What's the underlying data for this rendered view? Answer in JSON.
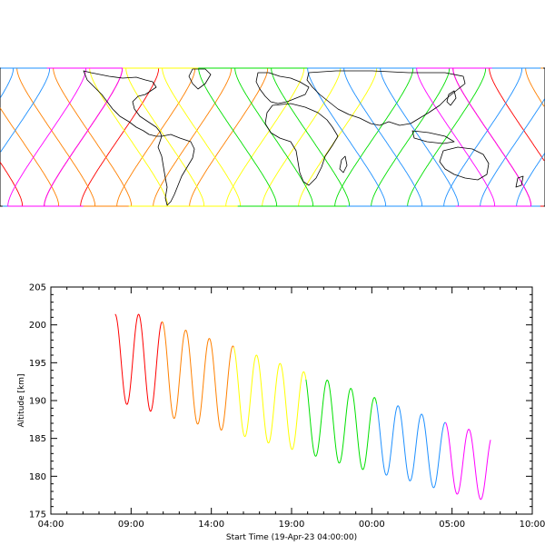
{
  "chart_data": [
    {
      "type": "map",
      "subject": "satellite ground tracks",
      "projection": "equirectangular",
      "xlim": [
        -180,
        180
      ],
      "ylim": [
        -70,
        70
      ],
      "orbit_inclination_deg": 97,
      "n_passes": 16,
      "lon_shift_per_pass_deg": 24,
      "pass_colors": [
        "#ff0000",
        "#ff0000",
        "#ff8000",
        "#ff8000",
        "#ff8000",
        "#ffff00",
        "#ffff00",
        "#ffff00",
        "#00e000",
        "#00e000",
        "#00e000",
        "#1e90ff",
        "#1e90ff",
        "#1e90ff",
        "#ff00ff",
        "#ff00ff"
      ],
      "grid": false
    },
    {
      "type": "line",
      "title": "",
      "xlabel": "Start Time (19-Apr-23 04:00:00)",
      "ylabel": "Altitude [km]",
      "xlim": [
        4,
        34
      ],
      "ylim": [
        175,
        205
      ],
      "x_ticks": [
        4,
        9,
        14,
        19,
        24,
        29,
        34
      ],
      "x_tick_labels": [
        "04:00",
        "09:00",
        "14:00",
        "19:00",
        "00:00",
        "05:00",
        "10:00"
      ],
      "y_ticks": [
        175,
        180,
        185,
        190,
        195,
        200,
        205
      ],
      "y_tick_labels": [
        "175",
        "180",
        "185",
        "190",
        "195",
        "200",
        "205"
      ],
      "grid": false,
      "x_start": 8.0,
      "x_end": 31.4,
      "period_hours": 1.47,
      "altitude_max": [
        201.4,
        201.4,
        200.4,
        199.3,
        198.2,
        197.2,
        196.0,
        194.9,
        193.8,
        192.7,
        191.6,
        190.4,
        189.3,
        188.2,
        187.1,
        186.2,
        185.3
      ],
      "altitude_min": [
        189.8,
        189.2,
        188.0,
        187.3,
        186.5,
        185.7,
        184.8,
        184.0,
        183.1,
        182.2,
        181.3,
        180.5,
        179.8,
        179.0,
        178.0,
        177.3,
        176.6
      ],
      "segment_boundaries_hours": [
        10.9,
        15.4,
        19.9,
        24.3,
        28.6
      ],
      "segment_colors": [
        "#ff0000",
        "#ff8000",
        "#ffff00",
        "#00e000",
        "#1e90ff",
        "#ff00ff"
      ]
    }
  ]
}
